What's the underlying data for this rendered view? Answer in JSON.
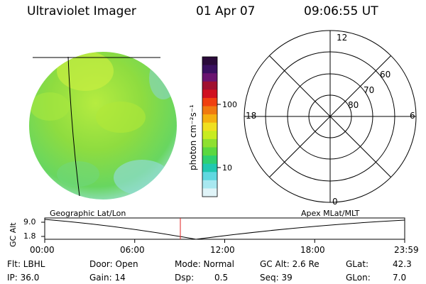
{
  "header": {
    "title": "Ultraviolet Imager",
    "date": "01 Apr 07",
    "time": "09:06:55 UT"
  },
  "colorbar": {
    "unit_label": "photon cm⁻²s⁻¹",
    "ticks": [
      "100",
      "10"
    ],
    "colors": [
      "#2a0a3a",
      "#3a1060",
      "#6a1470",
      "#a01030",
      "#d01020",
      "#f04010",
      "#f07a10",
      "#f5b010",
      "#f0e020",
      "#c8ec20",
      "#8ee030",
      "#5ad840",
      "#2ed070",
      "#20c8b0",
      "#60d8e0",
      "#a8e8f0",
      "#e0f4f8"
    ]
  },
  "polar": {
    "mlt_labels": [
      "12",
      "18",
      "6",
      "0"
    ],
    "lat_labels": [
      "60",
      "70",
      "80"
    ]
  },
  "timeline": {
    "ylabel": "GC Alt",
    "yticks": [
      "9.0",
      "1.8"
    ],
    "left_label": "Geographic Lat/Lon",
    "right_label": "Apex MLat/MLT",
    "xticks": [
      "00:00",
      "06:00",
      "12:00",
      "18:00",
      "23:59"
    ]
  },
  "info": {
    "flt": "Flt: LBHL",
    "ip": "IP: 36.0",
    "door": "Door: Open",
    "gain": "Gain: 14",
    "mode": "Mode: Normal",
    "dsp_label": "Dsp:",
    "dsp_value": "0.5",
    "gcalt": "GC Alt: 2.6 Re",
    "seq": "Seq: 39",
    "glat_label": "GLat:",
    "glat_value": "42.3",
    "glon_label": "GLon:",
    "glon_value": "7.0"
  }
}
